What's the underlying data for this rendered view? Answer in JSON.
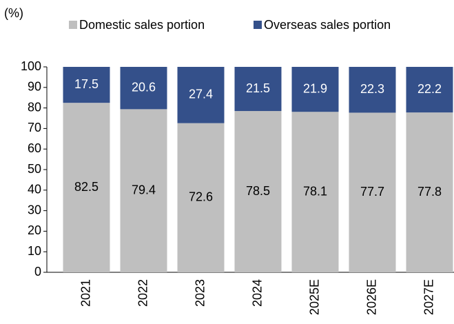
{
  "chart_data": {
    "type": "stacked_bar",
    "y_label": "(%)",
    "categories": [
      "2021",
      "2022",
      "2023",
      "2024",
      "2025E",
      "2026E",
      "2027E"
    ],
    "series": [
      {
        "name": "Domestic sales portion",
        "color": "#bfbfbf",
        "values": [
          82.5,
          79.4,
          72.6,
          78.5,
          78.1,
          77.7,
          77.8
        ]
      },
      {
        "name": "Overseas sales portion",
        "color": "#34508a",
        "values": [
          17.5,
          20.6,
          27.4,
          21.5,
          21.9,
          22.3,
          22.2
        ]
      }
    ],
    "ylim": [
      0,
      100
    ],
    "yticks": [
      0,
      10,
      20,
      30,
      40,
      50,
      60,
      70,
      80,
      90,
      100
    ],
    "legend": "top"
  }
}
